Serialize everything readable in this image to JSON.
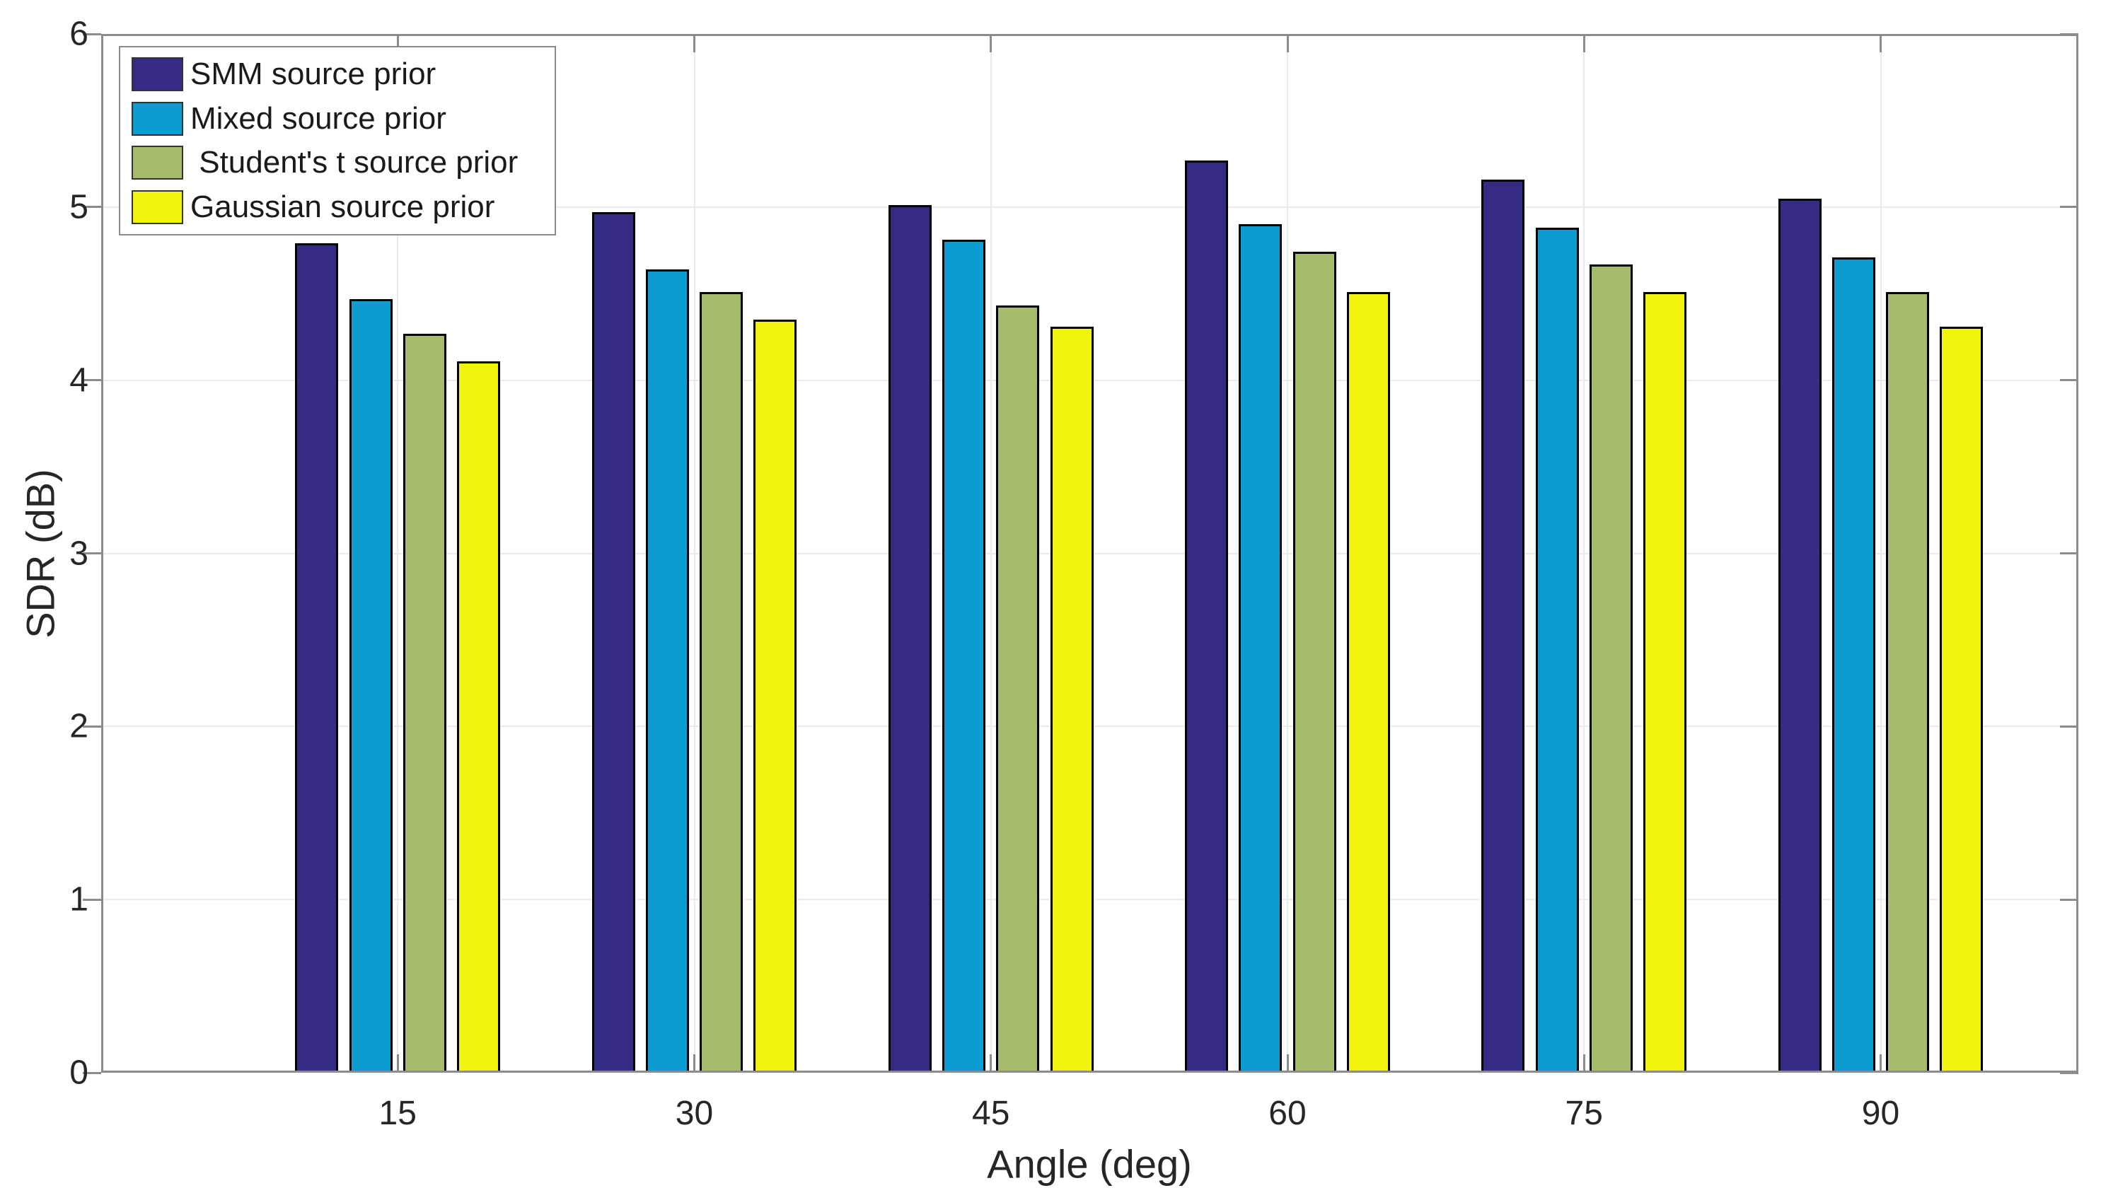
{
  "chart_data": {
    "type": "bar",
    "title": "",
    "xlabel": "Angle (deg)",
    "ylabel": "SDR (dB)",
    "categories": [
      15,
      30,
      45,
      60,
      75,
      90
    ],
    "x_tick_labels": [
      "15",
      "30",
      "45",
      "60",
      "75",
      "90"
    ],
    "y_tick_labels": [
      "0",
      "1",
      "2",
      "3",
      "4",
      "5",
      "6"
    ],
    "ylim": [
      0,
      6
    ],
    "xlim_deg": [
      0,
      100
    ],
    "grid": "on",
    "legend_position": "top-left",
    "series": [
      {
        "name": "SMM source prior",
        "color": "#342B85",
        "values": [
          4.79,
          4.97,
          5.01,
          5.27,
          5.16,
          5.05
        ]
      },
      {
        "name": "Mixed source prior",
        "color": "#0B9DD1",
        "values": [
          4.47,
          4.64,
          4.81,
          4.9,
          4.88,
          4.71
        ]
      },
      {
        "name": " Student's t source prior",
        "color": "#A6BC6B",
        "values": [
          4.27,
          4.51,
          4.43,
          4.74,
          4.67,
          4.51
        ]
      },
      {
        "name": "Gaussian source prior",
        "color": "#F3F40D",
        "values": [
          4.11,
          4.35,
          4.31,
          4.51,
          4.51,
          4.31
        ]
      }
    ],
    "bar_edge_color": "#000000",
    "axis_color": "#8C8C8C",
    "grid_color": "#EBEBEB",
    "text_color": "#262626"
  }
}
